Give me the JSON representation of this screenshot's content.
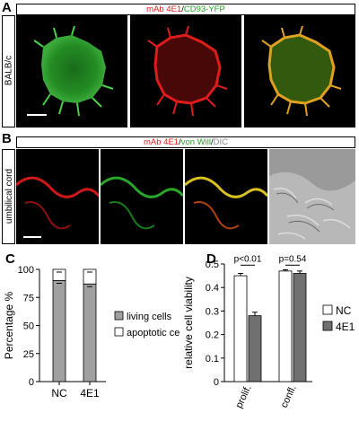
{
  "panel_a": {
    "letter": "A",
    "header": {
      "part1": "mAb 4E1",
      "sep": "/",
      "part2": "CD93-YFP"
    },
    "side_label": "BALB/c",
    "colors": {
      "red": "#e01b1b",
      "green": "#23a023",
      "merge": "#e0a020"
    }
  },
  "panel_b": {
    "letter": "B",
    "header": {
      "part1": "mAb 4E1",
      "sep1": "/",
      "part2": "von Will",
      "sep2": "/",
      "part3": "DIC"
    },
    "side_label": "umbilical cord"
  },
  "panel_c": {
    "letter": "C",
    "chart_data": {
      "type": "bar",
      "stacked": true,
      "categories": [
        "NC",
        "4E1"
      ],
      "series": [
        {
          "name": "living cells",
          "values": [
            90,
            87
          ],
          "color": "#a0a0a0"
        },
        {
          "name": "apoptotic cells",
          "values": [
            10,
            13
          ],
          "color": "#ffffff"
        }
      ],
      "xlabel": "",
      "ylabel": "Percentage %",
      "ylim": [
        0,
        100
      ],
      "yticks": [
        "0",
        "25",
        "50",
        "75",
        "100"
      ],
      "legend_placement": "right",
      "grid": false
    }
  },
  "panel_d": {
    "letter": "D",
    "chart_data": {
      "type": "bar",
      "categories": [
        "prolif.",
        "confl."
      ],
      "series": [
        {
          "name": "NC",
          "values": [
            0.45,
            0.47
          ],
          "errors": [
            0.01,
            0.005
          ],
          "color": "#ffffff"
        },
        {
          "name": "4E1",
          "values": [
            0.28,
            0.46
          ],
          "errors": [
            0.015,
            0.01
          ],
          "color": "#707070"
        }
      ],
      "xlabel": "",
      "ylabel": "relative cell viability",
      "ylim": [
        0,
        0.5
      ],
      "yticks": [
        "0",
        "0.1",
        "0.2",
        "0.3",
        "0.4",
        "0.5"
      ],
      "annotations": [
        "p<0.01",
        "p=0.54"
      ],
      "legend_placement": "right",
      "grid": false
    }
  }
}
